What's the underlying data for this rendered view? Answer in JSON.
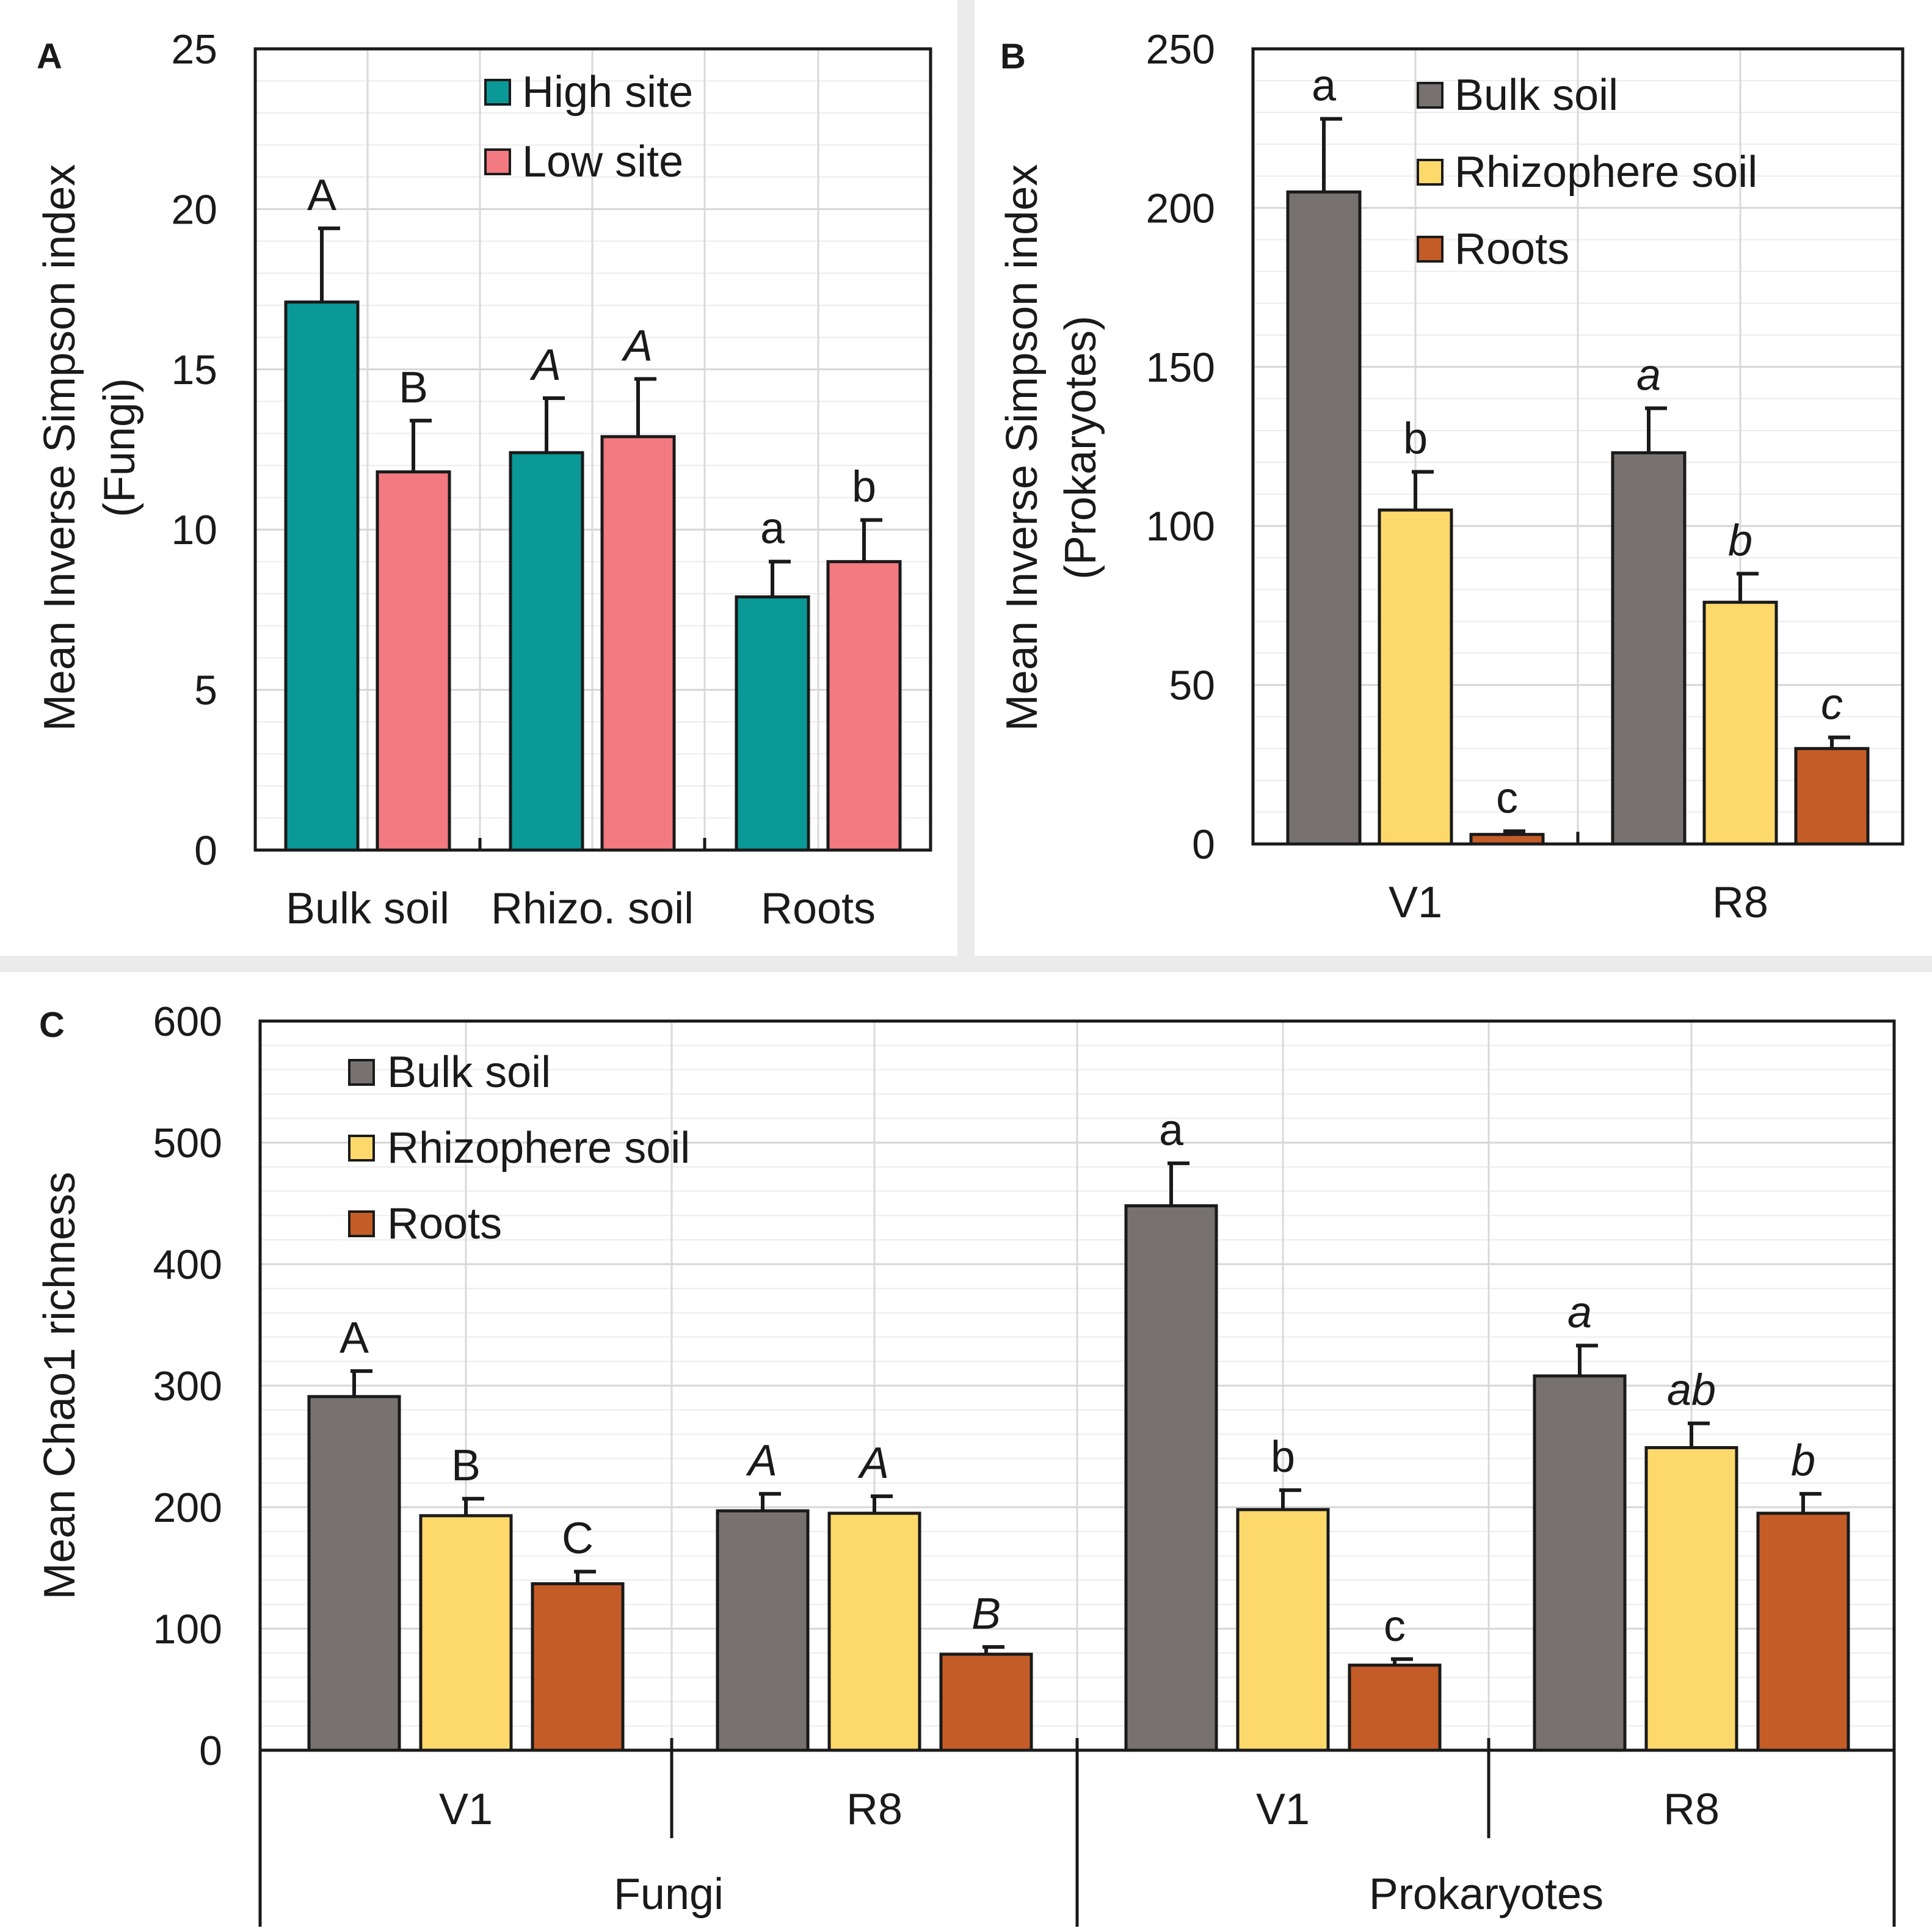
{
  "colors": {
    "background": "#ebebeb",
    "panel": "#ffffff",
    "grid": "#e3e3e3",
    "axis": "#1a1a1a",
    "high_site": "#0a9996",
    "low_site": "#f27a80",
    "bulk_soil": "#777270",
    "rhizosphere_soil": "#fdd96b",
    "roots": "#c45c28"
  },
  "chart_data": [
    {
      "id": "A",
      "label": "A",
      "type": "bar",
      "ylabel": [
        "Mean Inverse Simpson index",
        "(Fungi)"
      ],
      "ylim": [
        0,
        25
      ],
      "yticks": [
        0,
        5,
        10,
        15,
        20,
        25
      ],
      "categories": [
        "Bulk soil",
        "Rhizo. soil",
        "Roots"
      ],
      "legend_position": "top-center",
      "series": [
        {
          "name": "High site",
          "color_key": "high_site",
          "values": [
            17.1,
            12.4,
            7.9
          ],
          "errors": [
            2.3,
            1.7,
            1.1
          ],
          "letters": [
            "A",
            "A",
            "a"
          ],
          "italic": [
            false,
            true,
            false
          ]
        },
        {
          "name": "Low site",
          "color_key": "low_site",
          "values": [
            11.8,
            12.9,
            9.0
          ],
          "errors": [
            1.6,
            1.8,
            1.3
          ],
          "letters": [
            "B",
            "A",
            "b"
          ],
          "italic": [
            false,
            true,
            false
          ]
        }
      ]
    },
    {
      "id": "B",
      "label": "B",
      "type": "bar",
      "ylabel": [
        "Mean Inverse Simpson index",
        "(Prokaryotes)"
      ],
      "ylim": [
        0,
        250
      ],
      "yticks": [
        0,
        50,
        100,
        150,
        200,
        250
      ],
      "categories": [
        "V1",
        "R8"
      ],
      "legend_position": "top-right",
      "series": [
        {
          "name": "Bulk soil",
          "color_key": "bulk_soil",
          "values": [
            205,
            123
          ],
          "errors": [
            23,
            14
          ],
          "letters": [
            "a",
            "a"
          ],
          "italic": [
            false,
            true
          ]
        },
        {
          "name": "Rhizophere soil",
          "color_key": "rhizosphere_soil",
          "values": [
            105,
            76
          ],
          "errors": [
            12,
            9
          ],
          "letters": [
            "b",
            "b"
          ],
          "italic": [
            false,
            true
          ]
        },
        {
          "name": "Roots",
          "color_key": "roots",
          "values": [
            3,
            30
          ],
          "errors": [
            1,
            3.5
          ],
          "letters": [
            "c",
            "c"
          ],
          "italic": [
            false,
            true
          ]
        }
      ]
    },
    {
      "id": "C",
      "label": "C",
      "type": "bar",
      "ylabel": [
        "Mean Chao1 richness"
      ],
      "ylim": [
        0,
        600
      ],
      "yticks": [
        0,
        100,
        200,
        300,
        400,
        500,
        600
      ],
      "categories": [
        "V1",
        "R8",
        "V1",
        "R8"
      ],
      "groups": [
        "Fungi",
        "Prokaryotes"
      ],
      "legend_position": "top-left",
      "series": [
        {
          "name": "Bulk soil",
          "color_key": "bulk_soil",
          "values": [
            291,
            197,
            448,
            308
          ],
          "errors": [
            21,
            14,
            35,
            25
          ],
          "letters": [
            "A",
            "A",
            "a",
            "a"
          ],
          "italic": [
            false,
            true,
            false,
            true
          ]
        },
        {
          "name": "Rhizophere soil",
          "color_key": "rhizosphere_soil",
          "values": [
            193,
            195,
            198,
            249
          ],
          "errors": [
            14,
            14,
            16,
            20
          ],
          "letters": [
            "B",
            "A",
            "b",
            "ab"
          ],
          "italic": [
            false,
            true,
            false,
            true
          ]
        },
        {
          "name": "Roots",
          "color_key": "roots",
          "values": [
            137,
            79,
            70,
            195
          ],
          "errors": [
            10,
            6,
            5,
            16
          ],
          "letters": [
            "C",
            "B",
            "c",
            "b"
          ],
          "italic": [
            false,
            true,
            false,
            true
          ]
        }
      ]
    }
  ]
}
